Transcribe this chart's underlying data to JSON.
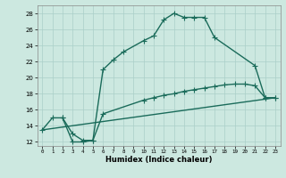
{
  "background_color": "#cce8e0",
  "grid_color": "#aacfc8",
  "line_color": "#1a6b5a",
  "xlabel": "Humidex (Indice chaleur)",
  "xlim": [
    -0.5,
    23.5
  ],
  "ylim": [
    11.5,
    29.0
  ],
  "xticks": [
    0,
    1,
    2,
    3,
    4,
    5,
    6,
    7,
    8,
    9,
    10,
    11,
    12,
    13,
    14,
    15,
    16,
    17,
    18,
    19,
    20,
    21,
    22,
    23
  ],
  "yticks": [
    12,
    14,
    16,
    18,
    20,
    22,
    24,
    26,
    28
  ],
  "curve1_x": [
    0,
    1,
    2,
    3,
    4,
    5,
    6,
    7,
    8,
    10,
    11,
    12,
    13,
    14,
    15,
    16,
    17,
    21,
    22,
    23
  ],
  "curve1_y": [
    13.5,
    15.0,
    15.0,
    12.0,
    12.0,
    12.2,
    21.0,
    22.2,
    23.2,
    24.6,
    25.2,
    27.2,
    28.0,
    27.5,
    27.5,
    27.5,
    25.0,
    21.5,
    17.5,
    17.5
  ],
  "curve2_x": [
    0,
    23
  ],
  "curve2_y": [
    13.5,
    17.5
  ],
  "curve3_x": [
    2,
    3,
    4,
    5,
    6,
    10,
    11,
    12,
    13,
    14,
    15,
    16,
    17,
    18,
    19,
    20,
    21,
    22,
    23
  ],
  "curve3_y": [
    15.0,
    13.0,
    12.2,
    12.2,
    15.5,
    17.2,
    17.5,
    17.8,
    18.0,
    18.3,
    18.5,
    18.7,
    18.9,
    19.1,
    19.2,
    19.2,
    19.0,
    17.5,
    17.5
  ],
  "linewidth": 1.0,
  "markersize": 4,
  "marker": "+"
}
